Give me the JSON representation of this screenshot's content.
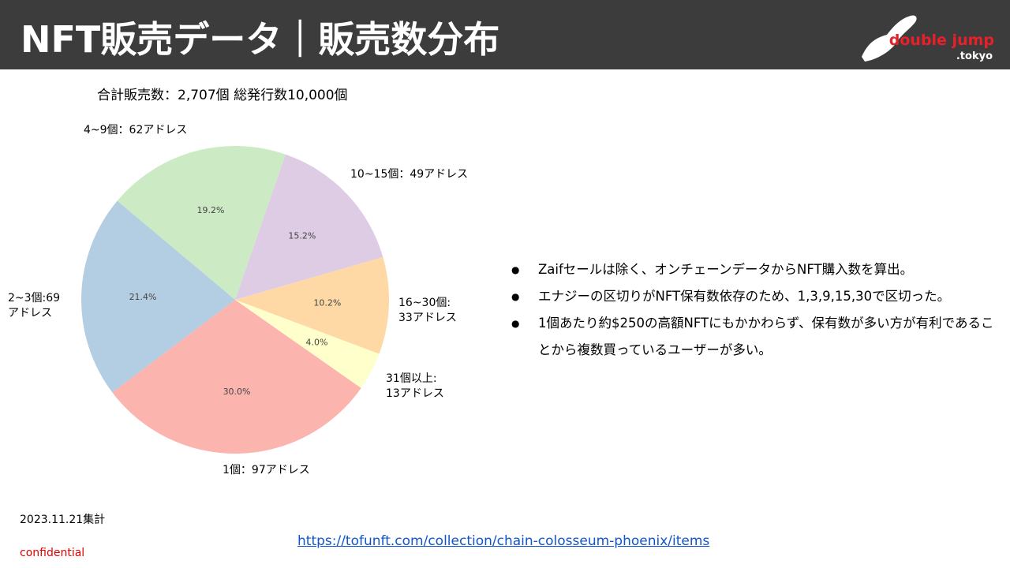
{
  "header": {
    "title": "NFT販売データ｜販売数分布",
    "logo": "double jump",
    "logo_sub": ".tokyo"
  },
  "chart_data": {
    "type": "pie",
    "title": "合計販売数：2,707個 総発行数10,000個",
    "categories": [
      "1個：97アドレス",
      "2~3個:69\nアドレス",
      "4~9個：62アドレス",
      "10~15個：49アドレス",
      "16~30個:\n33アドレス",
      "31個以上:\n13アドレス"
    ],
    "values": [
      30.0,
      21.4,
      19.2,
      15.2,
      10.2,
      4.0
    ],
    "value_labels": [
      "30.0%",
      "21.4%",
      "19.2%",
      "15.2%",
      "10.2%",
      "4.0%"
    ],
    "colors": [
      "#fbb4ae",
      "#b3cde3",
      "#ccebc5",
      "#decbe4",
      "#fed9a6",
      "#ffffcc"
    ]
  },
  "notes": [
    "Zaifセールは除く、オンチェーンデータからNFT購入数を算出。",
    "エナジーの区切りがNFT保有数依存のため、1,3,9,15,30で区切った。",
    "1個あたり約$250の高額NFTにもかかわらず、保有数が多い方が有利であることから複数買っているユーザーが多い。"
  ],
  "footer": {
    "date": "2023.11.21集計",
    "url": "https://tofunft.com/collection/chain-colosseum-phoenix/items",
    "confidential": "confidential"
  }
}
